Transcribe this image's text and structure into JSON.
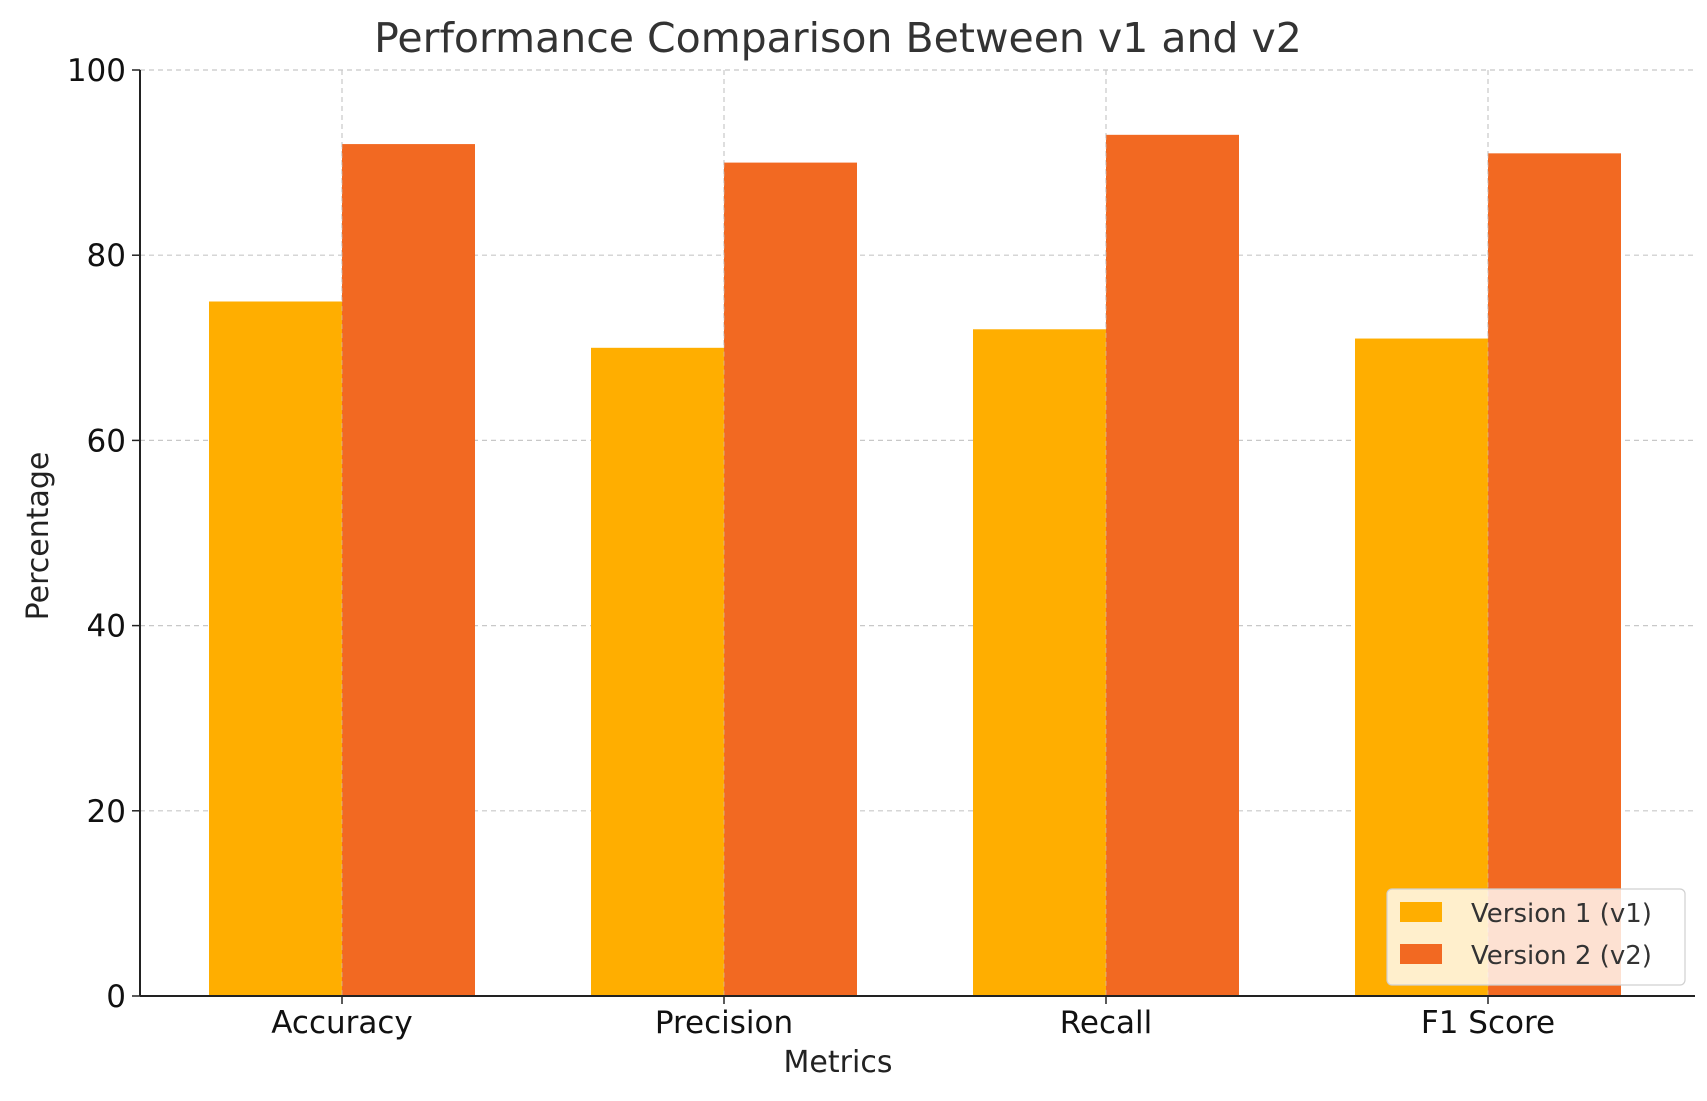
{
  "chart_data": {
    "type": "bar",
    "title": "Performance Comparison Between v1 and v2",
    "xlabel": "Metrics",
    "ylabel": "Percentage",
    "categories": [
      "Accuracy",
      "Precision",
      "Recall",
      "F1 Score"
    ],
    "series": [
      {
        "name": "Version 1 (v1)",
        "values": [
          75,
          70,
          72,
          71
        ],
        "color": "#FFAE00"
      },
      {
        "name": "Version 2 (v2)",
        "values": [
          92,
          90,
          93,
          91
        ],
        "color": "#F26922"
      }
    ],
    "ylim": [
      0,
      100
    ],
    "yticks": [
      0,
      20,
      40,
      60,
      80,
      100
    ],
    "grid": true,
    "legend_position": "lower-right"
  }
}
